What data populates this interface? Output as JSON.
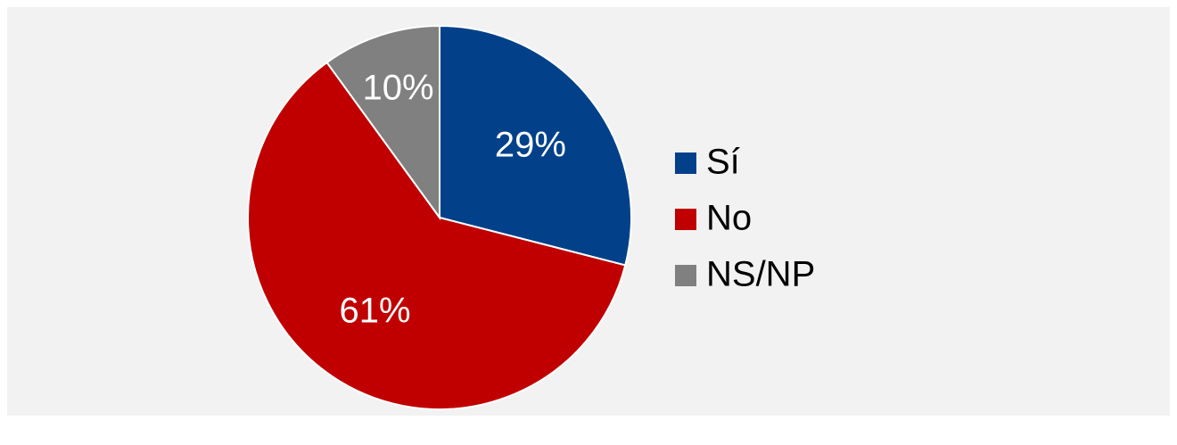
{
  "chart_data": {
    "type": "pie",
    "categories": [
      "Sí",
      "No",
      "NS/NP"
    ],
    "values": [
      29,
      61,
      10
    ],
    "value_labels": [
      "29%",
      "61%",
      "10%"
    ],
    "colors": [
      "#02418a",
      "#c00000",
      "#808080"
    ],
    "legend": "right"
  }
}
